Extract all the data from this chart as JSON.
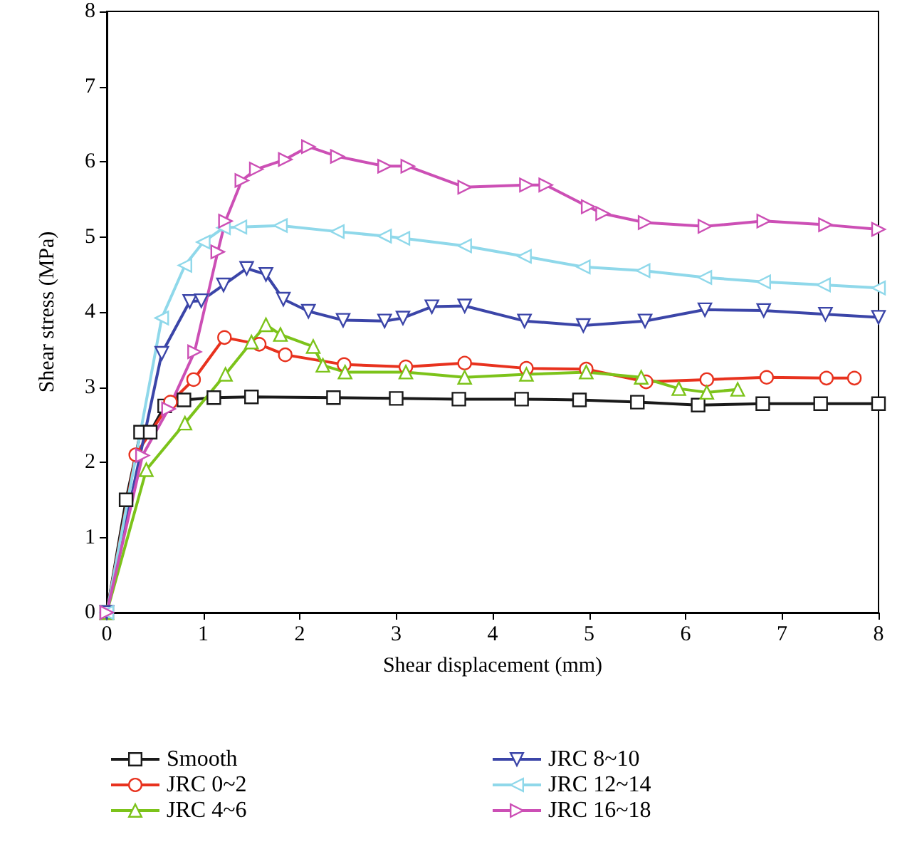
{
  "chart_data": {
    "type": "line",
    "xlabel": "Shear displacement (mm)",
    "ylabel": "Shear stress (MPa)",
    "xlim": [
      0,
      8
    ],
    "ylim": [
      0,
      8
    ],
    "xticks": [
      0,
      1,
      2,
      3,
      4,
      5,
      6,
      7,
      8
    ],
    "yticks": [
      0,
      1,
      2,
      3,
      4,
      5,
      6,
      7,
      8
    ],
    "grid": false,
    "legend": "bottom",
    "series": [
      {
        "name": "Smooth",
        "color": "#1a1a1a",
        "marker": "square",
        "x": [
          0,
          0.2,
          0.35,
          0.45,
          0.6,
          0.8,
          1.11,
          1.5,
          2.35,
          3.0,
          3.65,
          4.3,
          4.9,
          5.5,
          6.13,
          6.8,
          7.4,
          8.0
        ],
        "values": [
          0,
          1.5,
          2.4,
          2.4,
          2.75,
          2.83,
          2.86,
          2.87,
          2.86,
          2.85,
          2.84,
          2.84,
          2.83,
          2.8,
          2.76,
          2.78,
          2.78,
          2.78
        ]
      },
      {
        "name": "JRC 0~2",
        "color": "#e8321e",
        "marker": "circle",
        "x": [
          0,
          0.3,
          0.66,
          0.9,
          1.22,
          1.58,
          1.85,
          2.46,
          3.1,
          3.71,
          4.35,
          4.97,
          5.59,
          6.22,
          6.84,
          7.46,
          7.75
        ],
        "values": [
          0,
          2.1,
          2.8,
          3.1,
          3.66,
          3.57,
          3.43,
          3.3,
          3.27,
          3.32,
          3.25,
          3.24,
          3.07,
          3.1,
          3.13,
          3.12,
          3.12
        ]
      },
      {
        "name": "JRC 4~6",
        "color": "#7cc31a",
        "marker": "triangle",
        "x": [
          0,
          0.41,
          0.81,
          1.23,
          1.5,
          1.65,
          1.8,
          2.14,
          2.24,
          2.47,
          3.1,
          3.71,
          4.35,
          4.97,
          5.54,
          5.93,
          6.22,
          6.54
        ],
        "values": [
          0,
          1.9,
          2.52,
          3.17,
          3.6,
          3.83,
          3.7,
          3.54,
          3.29,
          3.2,
          3.2,
          3.13,
          3.17,
          3.2,
          3.13,
          2.98,
          2.93,
          2.97
        ]
      },
      {
        "name": "JRC 8~10",
        "color": "#3b45a8",
        "marker": "triangle-down",
        "x": [
          0,
          0.57,
          0.86,
          0.98,
          1.21,
          1.45,
          1.65,
          1.83,
          2.09,
          2.45,
          2.88,
          3.07,
          3.37,
          3.71,
          4.33,
          4.94,
          5.58,
          6.2,
          6.81,
          7.45,
          8.0
        ],
        "values": [
          0,
          3.45,
          4.14,
          4.15,
          4.36,
          4.58,
          4.5,
          4.17,
          4.01,
          3.89,
          3.88,
          3.92,
          4.07,
          4.08,
          3.88,
          3.82,
          3.88,
          4.03,
          4.02,
          3.97,
          3.93
        ]
      },
      {
        "name": "JRC 12~14",
        "color": "#8fd8ea",
        "marker": "triangle-left",
        "x": [
          0,
          0.57,
          0.81,
          1.0,
          1.21,
          1.38,
          1.8,
          2.39,
          2.88,
          3.07,
          3.71,
          4.33,
          4.94,
          5.56,
          6.2,
          6.81,
          7.43,
          8.0
        ],
        "values": [
          0,
          3.92,
          4.62,
          4.93,
          5.12,
          5.13,
          5.15,
          5.07,
          5.01,
          4.98,
          4.88,
          4.74,
          4.6,
          4.55,
          4.46,
          4.4,
          4.36,
          4.32
        ]
      },
      {
        "name": "JRC 16~18",
        "color": "#cc4fb5",
        "marker": "triangle-right",
        "x": [
          0,
          0.37,
          0.64,
          0.91,
          1.15,
          1.23,
          1.4,
          1.55,
          1.85,
          2.09,
          2.39,
          2.88,
          3.12,
          3.71,
          4.35,
          4.55,
          4.99,
          5.14,
          5.58,
          6.2,
          6.81,
          7.45,
          8.0
        ],
        "values": [
          0,
          2.09,
          2.71,
          3.47,
          4.8,
          5.21,
          5.75,
          5.9,
          6.03,
          6.2,
          6.07,
          5.94,
          5.94,
          5.66,
          5.69,
          5.69,
          5.4,
          5.31,
          5.19,
          5.14,
          5.21,
          5.16,
          5.1
        ]
      }
    ]
  }
}
